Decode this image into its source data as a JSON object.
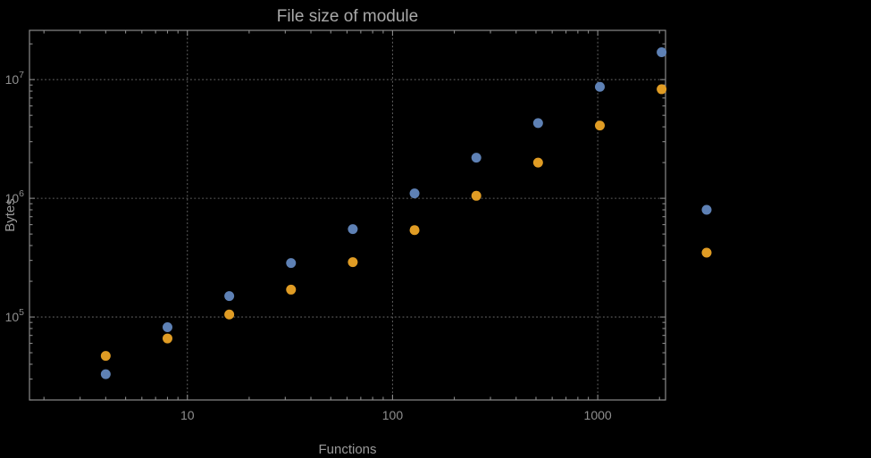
{
  "chart_data": {
    "type": "scatter",
    "title": "File size of module",
    "xlabel": "Functions",
    "ylabel": "Bytes",
    "x_scale": "log",
    "y_scale": "log",
    "grid": true,
    "xlim": [
      1.7,
      2140
    ],
    "ylim": [
      20000,
      26000000
    ],
    "x_ticks": [
      10,
      100,
      1000
    ],
    "x_tick_labels": [
      "10",
      "100",
      "1000"
    ],
    "y_ticks": [
      100000,
      1000000,
      10000000
    ],
    "y_tick_labels": [
      [
        "10",
        "5"
      ],
      [
        "10",
        "6"
      ],
      [
        "10",
        "7"
      ]
    ],
    "series": [
      {
        "name": "series-1-blue",
        "color": "#5e81b5",
        "points": [
          [
            4,
            33000
          ],
          [
            8,
            82000
          ],
          [
            16,
            150000
          ],
          [
            32,
            285000
          ],
          [
            64,
            550000
          ],
          [
            128,
            1100000
          ],
          [
            256,
            2200000
          ],
          [
            512,
            4300000
          ],
          [
            1024,
            8700000
          ],
          [
            2048,
            17000000
          ]
        ]
      },
      {
        "name": "series-2-orange",
        "color": "#e09c24",
        "points": [
          [
            4,
            47000
          ],
          [
            8,
            66000
          ],
          [
            16,
            105000
          ],
          [
            32,
            170000
          ],
          [
            64,
            290000
          ],
          [
            128,
            540000
          ],
          [
            256,
            1050000
          ],
          [
            512,
            2000000
          ],
          [
            1024,
            4100000
          ],
          [
            2048,
            8300000
          ]
        ]
      }
    ],
    "legend": {
      "items": [
        {
          "color": "#5e81b5",
          "label": ""
        },
        {
          "color": "#e09c24",
          "label": ""
        }
      ]
    },
    "colors": {
      "background": "#000000",
      "frame": "#8a8a8a",
      "grid": "#5f5f5f",
      "title_text": "#a9a9a9",
      "label_text": "#9a9a9a",
      "tick_text": "#8f8f8f"
    }
  }
}
